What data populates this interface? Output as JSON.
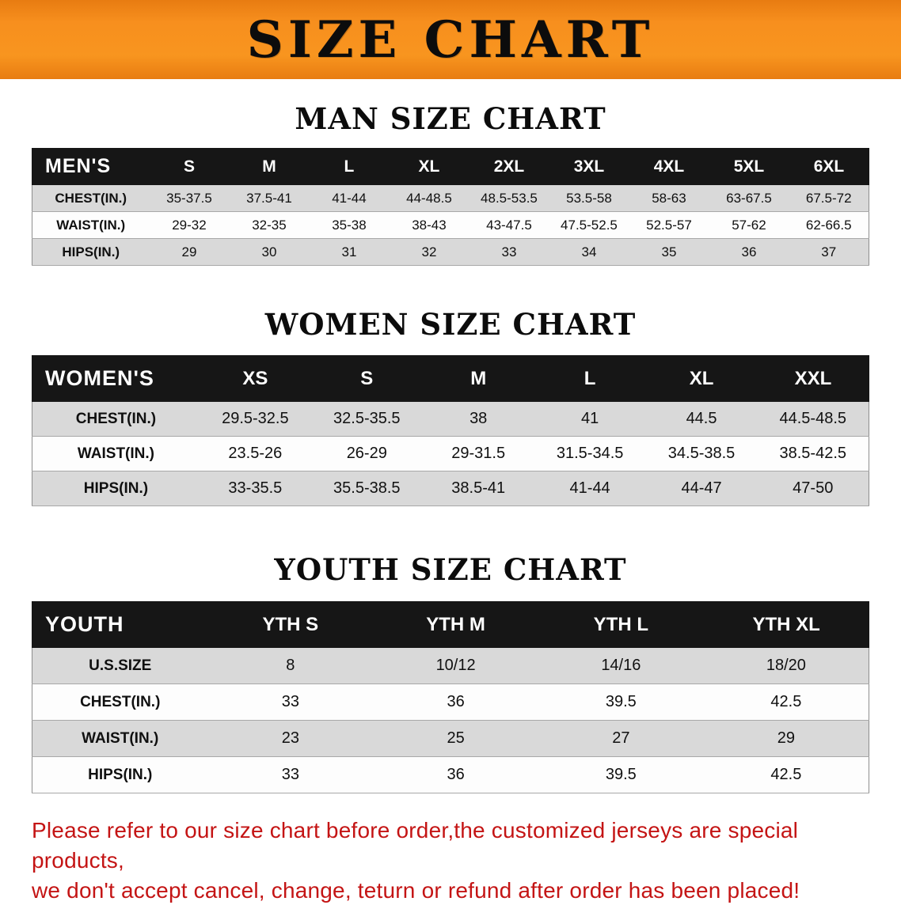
{
  "banner": {
    "title": "SIZE CHART"
  },
  "sections": [
    {
      "heading": "MAN SIZE CHART",
      "table": {
        "header_label": "MEN'S",
        "columns": [
          "S",
          "M",
          "L",
          "XL",
          "2XL",
          "3XL",
          "4XL",
          "5XL",
          "6XL"
        ],
        "rows": [
          {
            "label": "CHEST(IN.)",
            "values": [
              "35-37.5",
              "37.5-41",
              "41-44",
              "44-48.5",
              "48.5-53.5",
              "53.5-58",
              "58-63",
              "63-67.5",
              "67.5-72"
            ]
          },
          {
            "label": "WAIST(IN.)",
            "values": [
              "29-32",
              "32-35",
              "35-38",
              "38-43",
              "43-47.5",
              "47.5-52.5",
              "52.5-57",
              "57-62",
              "62-66.5"
            ]
          },
          {
            "label": "HIPS(IN.)",
            "values": [
              "29",
              "30",
              "31",
              "32",
              "33",
              "34",
              "35",
              "36",
              "37"
            ]
          }
        ]
      }
    },
    {
      "heading": "WOMEN SIZE CHART",
      "table": {
        "header_label": "WOMEN'S",
        "columns": [
          "XS",
          "S",
          "M",
          "L",
          "XL",
          "XXL"
        ],
        "rows": [
          {
            "label": "CHEST(IN.)",
            "values": [
              "29.5-32.5",
              "32.5-35.5",
              "38",
              "41",
              "44.5",
              "44.5-48.5"
            ]
          },
          {
            "label": "WAIST(IN.)",
            "values": [
              "23.5-26",
              "26-29",
              "29-31.5",
              "31.5-34.5",
              "34.5-38.5",
              "38.5-42.5"
            ]
          },
          {
            "label": "HIPS(IN.)",
            "values": [
              "33-35.5",
              "35.5-38.5",
              "38.5-41",
              "41-44",
              "44-47",
              "47-50"
            ]
          }
        ]
      }
    },
    {
      "heading": "YOUTH SIZE CHART",
      "table": {
        "header_label": "YOUTH",
        "columns": [
          "YTH S",
          "YTH M",
          "YTH L",
          "YTH XL"
        ],
        "rows": [
          {
            "label": "U.S.SIZE",
            "values": [
              "8",
              "10/12",
              "14/16",
              "18/20"
            ]
          },
          {
            "label": "CHEST(IN.)",
            "values": [
              "33",
              "36",
              "39.5",
              "42.5"
            ]
          },
          {
            "label": "WAIST(IN.)",
            "values": [
              "23",
              "25",
              "27",
              "29"
            ]
          },
          {
            "label": "HIPS(IN.)",
            "values": [
              "33",
              "36",
              "39.5",
              "42.5"
            ]
          }
        ]
      }
    }
  ],
  "note": {
    "lines": [
      "Please refer to our size chart before order,the customized jerseys are special products,",
      "we don't accept cancel, change, teturn or refund after order has been placed!"
    ]
  },
  "colors": {
    "banner_orange": "#f6891e",
    "header_black": "#161616",
    "row_gray": "#d9d9d9",
    "row_white": "#fdfdfd",
    "note_red": "#c41414"
  }
}
